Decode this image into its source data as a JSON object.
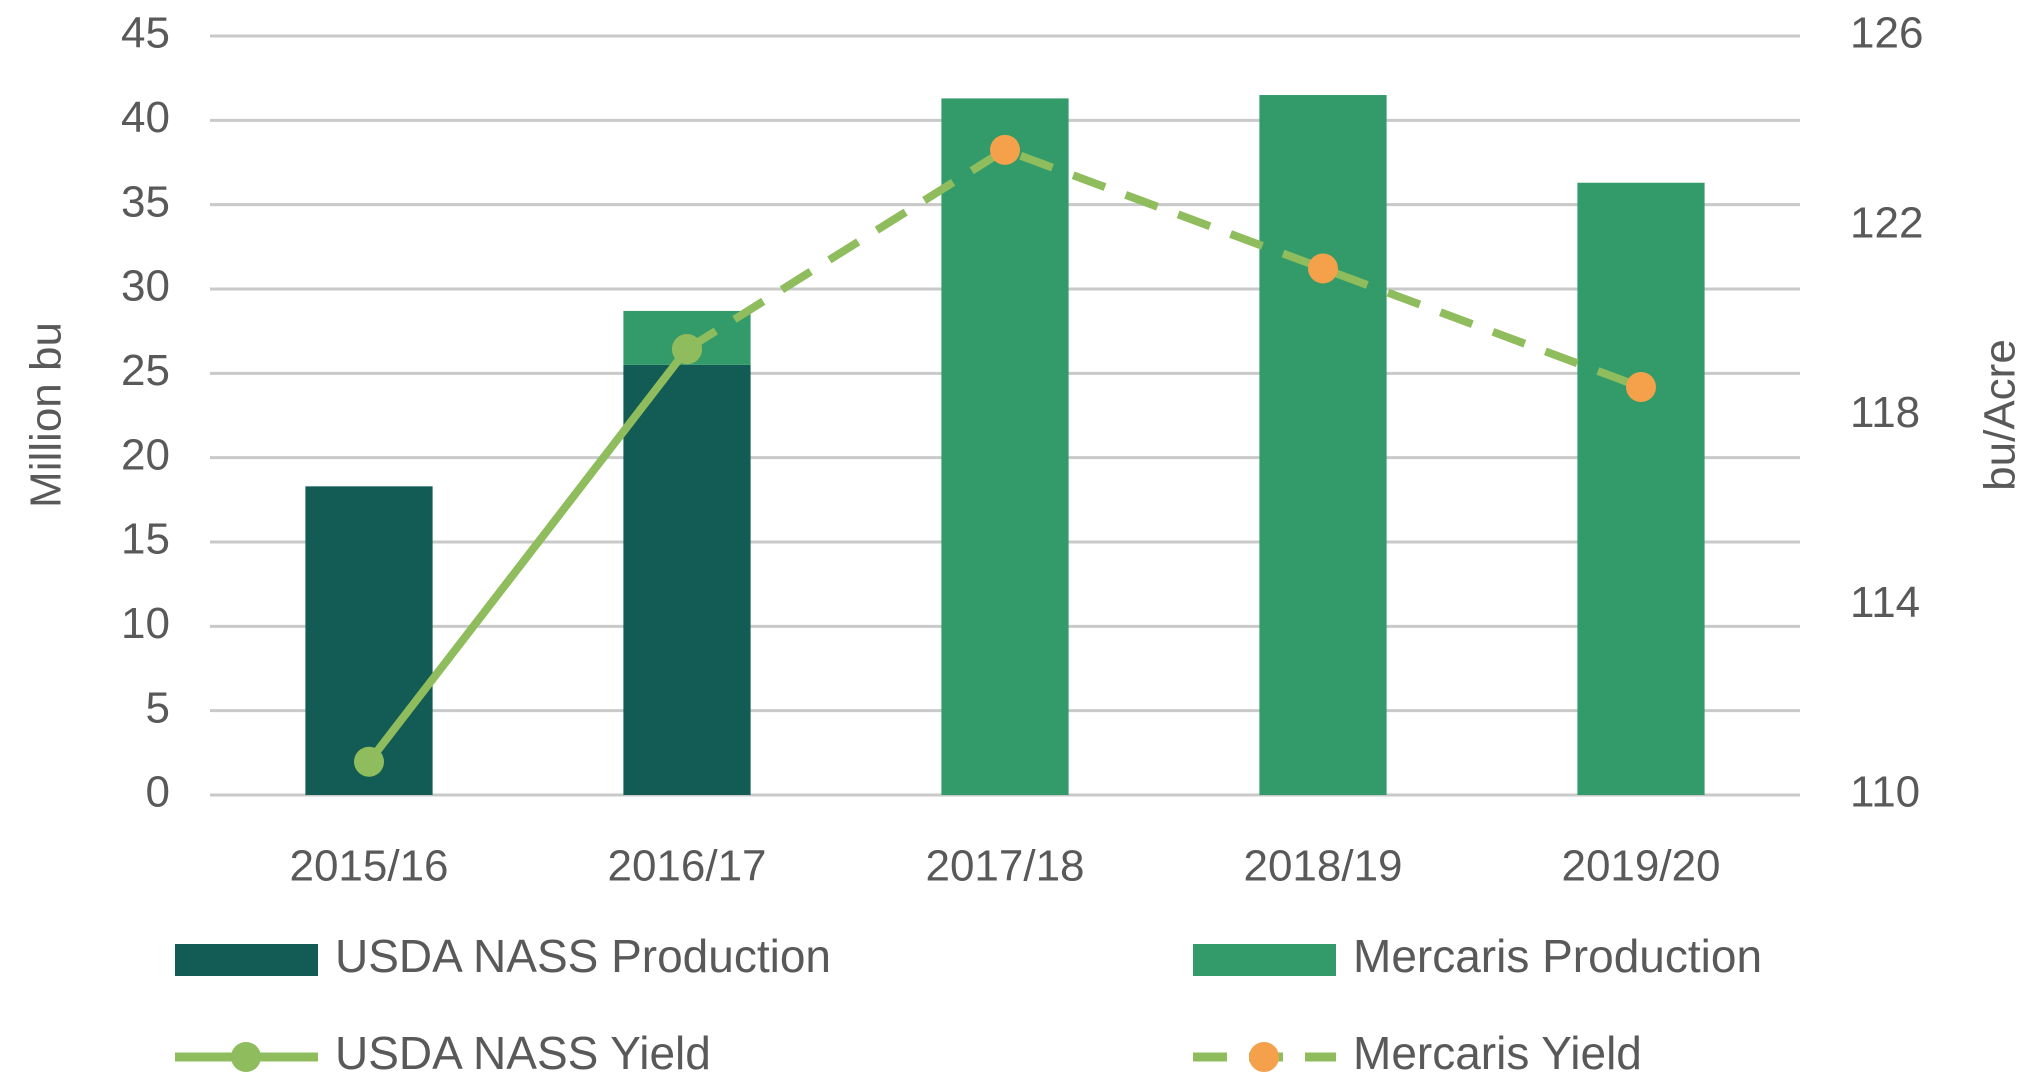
{
  "chart_data": {
    "type": "bar",
    "stacked": true,
    "categories": [
      "2015/16",
      "2016/17",
      "2017/18",
      "2018/19",
      "2019/20"
    ],
    "ylabel": "Million bu",
    "y2label": "bu/Acre",
    "ylim": [
      0,
      45
    ],
    "yticks": [
      0,
      5,
      10,
      15,
      20,
      25,
      30,
      35,
      40,
      45
    ],
    "y2lim": [
      110,
      126
    ],
    "y2ticks": [
      110,
      114,
      118,
      122,
      126
    ],
    "grid": true,
    "legend": "bottom",
    "series": [
      {
        "name": "USDA NASS Production",
        "type": "bar",
        "color": "#135c55",
        "values": [
          18.3,
          25.5,
          null,
          null,
          null
        ]
      },
      {
        "name": "Mercaris Production",
        "type": "bar",
        "color": "#339b6a",
        "values": [
          null,
          3.2,
          41.3,
          41.5,
          36.3
        ]
      },
      {
        "name": "USDA NASS Yield",
        "type": "line",
        "axis": "y2",
        "color": "#8fbc5c",
        "marker_color": "#8fbc5c",
        "line_style": "solid",
        "values": [
          110.7,
          119.4,
          null,
          null,
          null
        ]
      },
      {
        "name": "Mercaris Yield",
        "type": "line",
        "axis": "y2",
        "color": "#8fbc5c",
        "marker_color": "#f5a04a",
        "line_style": "dashed",
        "values": [
          null,
          119.4,
          123.6,
          121.1,
          118.6
        ]
      }
    ]
  }
}
